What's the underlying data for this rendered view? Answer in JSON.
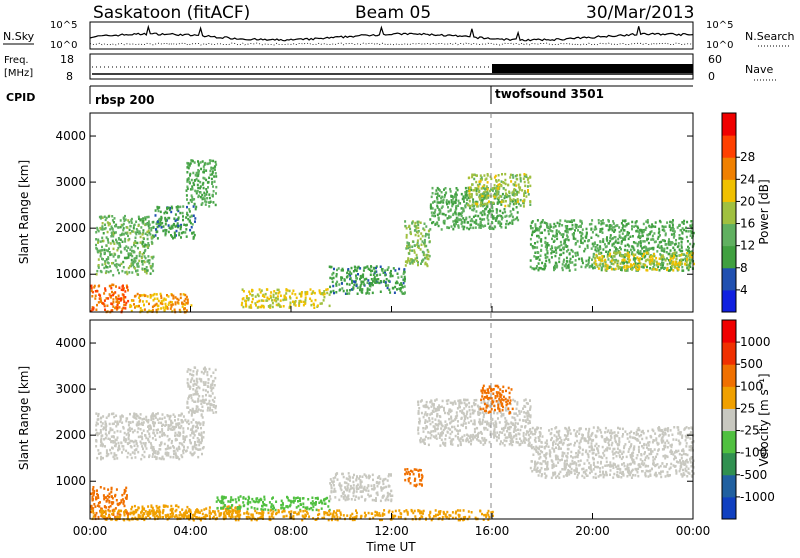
{
  "header": {
    "title": "Saskatoon (fitACF)",
    "beam": "Beam 05",
    "date": "30/Mar/2013"
  },
  "strip_panels": {
    "nsky_label": "N.Sky",
    "nsky_ticks": [
      "10^5",
      "10^0"
    ],
    "nsearch_label": "N.Search",
    "nsearch_ticks": [
      "10^5",
      "10^0"
    ],
    "freq_label_line1": "Freq.",
    "freq_label_line2": "[MHz]",
    "freq_ticks": [
      "18",
      "8"
    ],
    "nave_label": "Nave",
    "nave_ticks": [
      "60",
      "0"
    ],
    "cpid_label": "CPID",
    "cpid_segments": [
      {
        "name": "rbsp 200",
        "start_hour": 0
      },
      {
        "name": "twofsound 3501",
        "start_hour": 16
      }
    ]
  },
  "time_axis": {
    "label": "Time UT",
    "ticks": [
      "00:00",
      "04:00",
      "08:00",
      "12:00",
      "16:00",
      "20:00",
      "00:00"
    ]
  },
  "chart_data": [
    {
      "type": "heatmap",
      "name": "power-panel",
      "ylabel": "Slant Range [km]",
      "xlim_hours": [
        0,
        24
      ],
      "ylim": [
        180,
        4500
      ],
      "yticks": [
        1000,
        2000,
        3000,
        4000
      ],
      "colorbar_label": "Power [dB]",
      "colorbar_ticks": [
        "4",
        "8",
        "12",
        "16",
        "20",
        "24",
        "28"
      ],
      "colorbar_colors": [
        "#1020e0",
        "#2050b0",
        "#40a040",
        "#60b060",
        "#a0c040",
        "#f0c000",
        "#f08000",
        "#ff4000",
        "#f00000"
      ],
      "scatter_regions": [
        {
          "hour_start": 0.0,
          "hour_end": 1.5,
          "range_start": 200,
          "range_end": 800,
          "value": 28
        },
        {
          "hour_start": 0.2,
          "hour_end": 2.5,
          "range_start": 1000,
          "range_end": 2300,
          "value": 14
        },
        {
          "hour_start": 2.5,
          "hour_end": 4.2,
          "range_start": 1800,
          "range_end": 2500,
          "value": 10
        },
        {
          "hour_start": 3.8,
          "hour_end": 5.0,
          "range_start": 2500,
          "range_end": 3500,
          "value": 12
        },
        {
          "hour_start": 1.5,
          "hour_end": 4.0,
          "range_start": 200,
          "range_end": 600,
          "value": 24
        },
        {
          "hour_start": 6.0,
          "hour_end": 9.5,
          "range_start": 300,
          "range_end": 700,
          "value": 20
        },
        {
          "hour_start": 9.5,
          "hour_end": 12.5,
          "range_start": 600,
          "range_end": 1200,
          "value": 10
        },
        {
          "hour_start": 12.5,
          "hour_end": 13.5,
          "range_start": 1200,
          "range_end": 2200,
          "value": 16
        },
        {
          "hour_start": 13.5,
          "hour_end": 17.0,
          "range_start": 2000,
          "range_end": 2900,
          "value": 12
        },
        {
          "hour_start": 15.0,
          "hour_end": 17.5,
          "range_start": 2500,
          "range_end": 3200,
          "value": 18
        },
        {
          "hour_start": 17.5,
          "hour_end": 24.0,
          "range_start": 1100,
          "range_end": 2200,
          "value": 12
        },
        {
          "hour_start": 20.0,
          "hour_end": 24.0,
          "range_start": 1100,
          "range_end": 1500,
          "value": 20
        }
      ]
    },
    {
      "type": "heatmap",
      "name": "velocity-panel",
      "ylabel": "Slant Range [km]",
      "xlim_hours": [
        0,
        24
      ],
      "ylim": [
        180,
        4500
      ],
      "yticks": [
        1000,
        2000,
        3000,
        4000
      ],
      "colorbar_label": "Velocity [m s⁻¹]",
      "colorbar_ticks": [
        "1000",
        "500",
        "100",
        "25",
        "-25",
        "-100",
        "-500",
        "-1000"
      ],
      "colorbar_colors": [
        "#1040c0",
        "#2060a0",
        "#309050",
        "#50c040",
        "#c8c8c0",
        "#f0a000",
        "#f07000",
        "#f03000",
        "#f00000"
      ],
      "scatter_regions": [
        {
          "hour_start": 0.0,
          "hour_end": 1.5,
          "range_start": 200,
          "range_end": 900,
          "value": -300
        },
        {
          "hour_start": 0.2,
          "hour_end": 4.5,
          "range_start": 1500,
          "range_end": 2500,
          "value": 0
        },
        {
          "hour_start": 3.8,
          "hour_end": 5.0,
          "range_start": 2500,
          "range_end": 3500,
          "value": 0
        },
        {
          "hour_start": 1.5,
          "hour_end": 6.0,
          "range_start": 200,
          "range_end": 500,
          "value": -150
        },
        {
          "hour_start": 5.0,
          "hour_end": 9.5,
          "range_start": 400,
          "range_end": 700,
          "value": 150
        },
        {
          "hour_start": 9.5,
          "hour_end": 12.0,
          "range_start": 600,
          "range_end": 1200,
          "value": 0
        },
        {
          "hour_start": 12.5,
          "hour_end": 13.2,
          "range_start": 900,
          "range_end": 1300,
          "value": -300
        },
        {
          "hour_start": 13.0,
          "hour_end": 17.5,
          "range_start": 1800,
          "range_end": 2800,
          "value": 0
        },
        {
          "hour_start": 15.5,
          "hour_end": 16.8,
          "range_start": 2500,
          "range_end": 3100,
          "value": -600
        },
        {
          "hour_start": 17.5,
          "hour_end": 24.0,
          "range_start": 1100,
          "range_end": 2200,
          "value": 0
        },
        {
          "hour_start": 0.0,
          "hour_end": 16.0,
          "range_start": 180,
          "range_end": 400,
          "value": -100
        }
      ]
    }
  ]
}
